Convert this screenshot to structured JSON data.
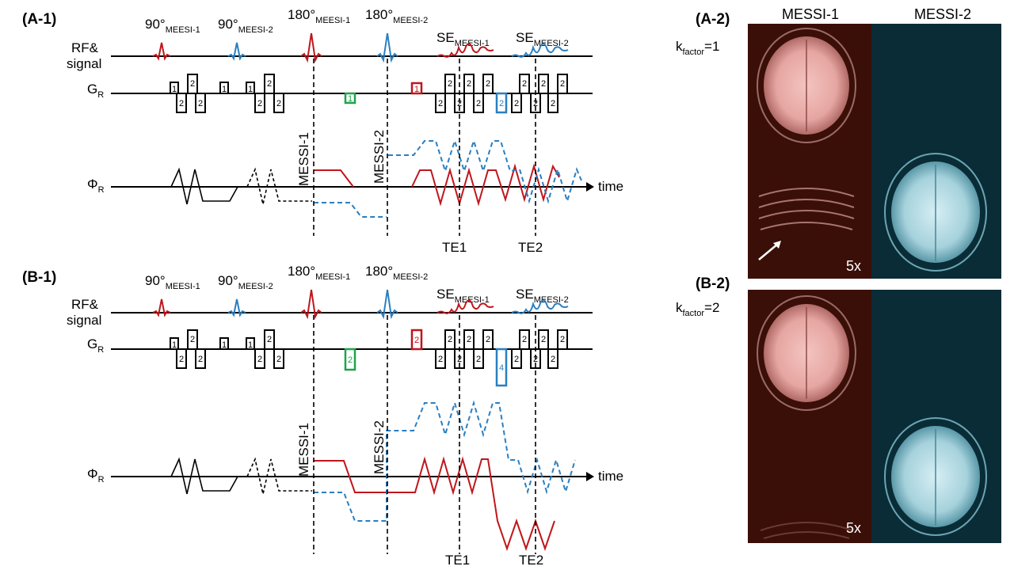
{
  "panels": {
    "a1": {
      "label": "(A-1)",
      "rf": [
        {
          "base": "90°",
          "sub": "MEESI-1"
        },
        {
          "base": "90°",
          "sub": "MEESI-2"
        },
        {
          "base": "180°",
          "sub": "MEESI-1"
        },
        {
          "base": "180°",
          "sub": "MEESI-2"
        }
      ],
      "se": [
        {
          "base": "SE",
          "sub": "MEESI-1"
        },
        {
          "base": "SE",
          "sub": "MEESI-2"
        }
      ],
      "messi_labels": [
        "MESSI-1",
        "MESSI-2"
      ],
      "te_labels": [
        "TE1",
        "TE2"
      ]
    },
    "b1": {
      "label": "(B-1)",
      "rf": [
        {
          "base": "90°",
          "sub": "MEESI-1"
        },
        {
          "base": "90°",
          "sub": "MEESI-2"
        },
        {
          "base": "180°",
          "sub": "MEESI-1"
        },
        {
          "base": "180°",
          "sub": "MEESI-2"
        }
      ],
      "se": [
        {
          "base": "SE",
          "sub": "MEESI-1"
        },
        {
          "base": "SE",
          "sub": "MEESI-2"
        }
      ],
      "messi_labels": [
        "MESSI-1",
        "MESSI-2"
      ],
      "te_labels": [
        "TE1",
        "TE2"
      ]
    },
    "a2": {
      "label": "(A-2)",
      "kfactor": {
        "base": "k",
        "sub": "factor",
        "value": "=1"
      },
      "scale": "5x"
    },
    "b2": {
      "label": "(B-2)",
      "kfactor": {
        "base": "k",
        "sub": "factor",
        "value": "=2"
      },
      "scale": "5x"
    }
  },
  "rows": {
    "rf_label_1": "RF&",
    "rf_label_2": "signal",
    "gr_base": "G",
    "gr_sub": "R",
    "phi_base": "Φ",
    "phi_sub": "R",
    "time": "time"
  },
  "image_columns": [
    "MESSI-1",
    "MESSI-2"
  ],
  "box_labels": {
    "one": "1",
    "two": "2",
    "four": "4"
  },
  "colors": {
    "messi1": "#c0161c",
    "messi2": "#2a7fc1",
    "green": "#1fa34a",
    "black": "#000000",
    "img1_bg": "#3a0f08",
    "img2_bg": "#0a2c36"
  }
}
